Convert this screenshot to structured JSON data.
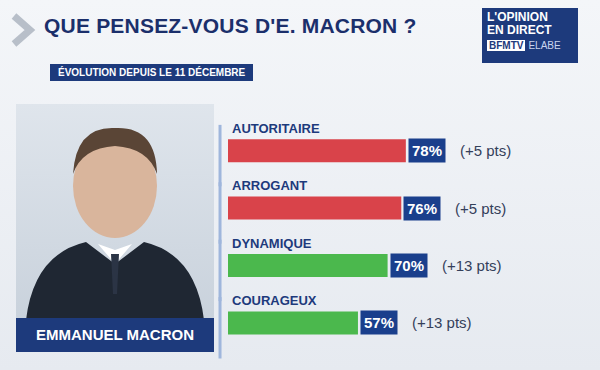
{
  "chart_data": {
    "type": "bar",
    "title": "QUE PENSEZ-VOUS D'E. MACRON ?",
    "subtitle": "ÉVOLUTION DEPUIS LE 11 DÉCEMBRE",
    "orientation": "horizontal",
    "categories": [
      "AUTORITAIRE",
      "ARROGANT",
      "DYNAMIQUE",
      "COURAGEUX"
    ],
    "values": [
      78,
      76,
      70,
      57
    ],
    "value_labels": [
      "78%",
      "76%",
      "70%",
      "57%"
    ],
    "change_labels": [
      "(+5 pts)",
      "(+5 pts)",
      "(+13 pts)",
      "(+13 pts)"
    ],
    "colors": [
      "#d9434a",
      "#d9434a",
      "#4bb84d",
      "#4bb84d"
    ],
    "xlim": [
      0,
      100
    ],
    "data_labels": true,
    "tick_labels": false,
    "grid": false
  },
  "logo": {
    "lines": [
      "L'OPINION",
      "EN DIRECT"
    ],
    "channel": "BFMTV",
    "partner": "ELABE"
  },
  "portrait_caption": "EMMANUEL MACRON"
}
